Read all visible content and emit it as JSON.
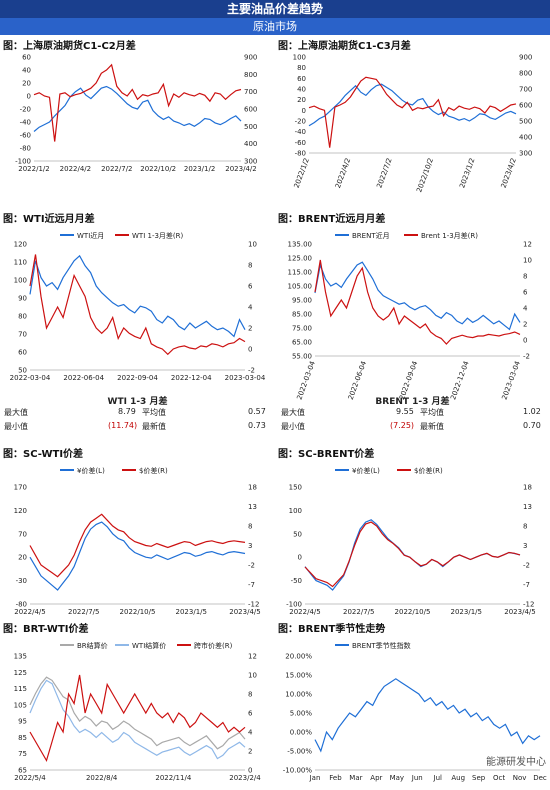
{
  "header": {
    "title": "主要油品价差趋势",
    "subtitle": "原油市场"
  },
  "stats_left": {
    "title": "WTI 1-3 月差",
    "max_label": "最大值",
    "max_val": "8.79",
    "avg_label": "平均值",
    "avg_val": "0.57",
    "min_label": "最小值",
    "min_val": "(11.74)",
    "latest_label": "最新值",
    "latest_val": "0.73"
  },
  "stats_right": {
    "title": "BRENT 1-3 月差",
    "max_label": "最大值",
    "max_val": "9.55",
    "avg_label": "平均值",
    "avg_val": "1.02",
    "min_label": "最小值",
    "min_val": "(7.25)",
    "latest_label": "最新值",
    "latest_val": "0.70"
  },
  "watermark": "能源研发中心",
  "colors": {
    "blue": "#1f6fd6",
    "red": "#cc1111",
    "gray": "#a9a9a9",
    "lightblue": "#8fb8e8",
    "banner": "#1a3f8e",
    "subbanner": "#2a62c9"
  },
  "chart_data": [
    {
      "id": "c1",
      "title": "图：上海原油期货C1-C2月差",
      "type": "line",
      "left_ticks": [
        "60",
        "40",
        "20",
        "0",
        "-20",
        "-40",
        "-60",
        "-80",
        "-100"
      ],
      "right_ticks": [
        "900",
        "800",
        "700",
        "600",
        "500",
        "400",
        "300"
      ],
      "x_ticks": [
        "2022/1/2",
        "2022/4/2",
        "2022/7/2",
        "2022/10/2",
        "2023/1/2",
        "2023/4/2"
      ],
      "ylim_left": [
        -100,
        60
      ],
      "ylim_right": [
        300,
        900
      ],
      "series": [
        {
          "color": "blue",
          "axis": "right",
          "values": [
            470,
            495,
            510,
            525,
            560,
            590,
            620,
            670,
            700,
            720,
            680,
            660,
            690,
            720,
            730,
            715,
            690,
            660,
            630,
            610,
            600,
            640,
            650,
            590,
            560,
            540,
            555,
            530,
            520,
            505,
            515,
            500,
            520,
            545,
            540,
            520,
            510,
            525,
            545,
            560,
            530
          ]
        },
        {
          "color": "red",
          "axis": "left",
          "values": [
            2,
            5,
            0,
            -2,
            -70,
            3,
            5,
            -1,
            2,
            4,
            8,
            12,
            20,
            35,
            40,
            48,
            15,
            5,
            0,
            10,
            -5,
            2,
            0,
            3,
            5,
            18,
            -15,
            3,
            -2,
            5,
            2,
            0,
            4,
            1,
            -8,
            5,
            3,
            -5,
            2,
            8,
            10
          ]
        }
      ]
    },
    {
      "id": "c2",
      "title": "图：上海原油期货C1-C3月差",
      "type": "line",
      "left_ticks": [
        "100",
        "80",
        "60",
        "40",
        "20",
        "0",
        "-20",
        "-40",
        "-60",
        "-80"
      ],
      "right_ticks": [
        "900",
        "800",
        "700",
        "600",
        "500",
        "400",
        "300"
      ],
      "x_ticks": [
        "2022/1/2",
        "2022/4/2",
        "2022/7/2",
        "2022/10/2",
        "2023/1/2",
        "2023/4/2"
      ],
      "ylim_left": [
        -80,
        100
      ],
      "ylim_right": [
        300,
        900
      ],
      "series": [
        {
          "color": "blue",
          "axis": "right",
          "values": [
            470,
            490,
            515,
            530,
            560,
            590,
            620,
            660,
            690,
            720,
            680,
            660,
            695,
            720,
            730,
            710,
            690,
            660,
            630,
            610,
            600,
            630,
            640,
            590,
            560,
            540,
            555,
            530,
            520,
            505,
            515,
            500,
            520,
            545,
            540,
            520,
            510,
            530,
            550,
            560,
            545
          ]
        },
        {
          "color": "red",
          "axis": "left",
          "values": [
            5,
            8,
            3,
            0,
            -70,
            6,
            10,
            15,
            25,
            40,
            55,
            62,
            60,
            58,
            45,
            30,
            20,
            10,
            5,
            15,
            0,
            5,
            3,
            6,
            8,
            20,
            -10,
            5,
            0,
            8,
            4,
            2,
            6,
            3,
            -5,
            8,
            5,
            -2,
            4,
            10,
            12
          ]
        }
      ]
    },
    {
      "id": "c3",
      "title": "图：WTI近远月月差",
      "type": "line",
      "left_ticks": [
        "120",
        "110",
        "100",
        "90",
        "80",
        "70",
        "60",
        "50"
      ],
      "right_ticks": [
        "10",
        "8",
        "6",
        "4",
        "2",
        "0",
        "-2"
      ],
      "x_ticks": [
        "2022-03-04",
        "2022-06-04",
        "2022-09-04",
        "2022-12-04",
        "2023-03-04"
      ],
      "ylim_left": [
        50,
        125
      ],
      "ylim_right": [
        -2,
        10
      ],
      "legend": [
        "WTI近月",
        "WTI 1-3月差(R)"
      ],
      "series": [
        {
          "name": "WTI近月",
          "color": "blue",
          "axis": "left",
          "values": [
            95,
            115,
            105,
            100,
            102,
            98,
            105,
            110,
            115,
            118,
            112,
            108,
            100,
            96,
            93,
            90,
            88,
            89,
            86,
            84,
            88,
            87,
            85,
            80,
            78,
            82,
            80,
            76,
            74,
            78,
            75,
            77,
            79,
            76,
            74,
            75,
            73,
            70,
            80,
            74
          ]
        },
        {
          "name": "WTI 1-3月差(R)",
          "color": "red",
          "axis": "right",
          "values": [
            6,
            9,
            5,
            2,
            3,
            4,
            3,
            5,
            7,
            6,
            5,
            3,
            2,
            1.5,
            2,
            3,
            1,
            2,
            1.5,
            1.2,
            1,
            2,
            0.5,
            0.2,
            0,
            -0.5,
            0,
            0.2,
            0.3,
            0.1,
            0,
            0.3,
            0.2,
            0.5,
            0.4,
            0.2,
            0.5,
            0.6,
            1,
            0.7
          ]
        }
      ]
    },
    {
      "id": "c4",
      "title": "图：BRENT近远月月差",
      "type": "line",
      "left_ticks": [
        "135.00",
        "125.00",
        "115.00",
        "105.00",
        "95.00",
        "85.00",
        "75.00",
        "65.00",
        "55.00"
      ],
      "right_ticks": [
        "12",
        "10",
        "8",
        "6",
        "4",
        "2",
        "0",
        "-2"
      ],
      "x_ticks": [
        "2022-03-04",
        "2022-06-04",
        "2022-09-04",
        "2022-12-04",
        "2023-03-04"
      ],
      "ylim_left": [
        55,
        135
      ],
      "ylim_right": [
        -2,
        12
      ],
      "legend": [
        "BRENT近月",
        "Brent 1-3月差(R)"
      ],
      "series": [
        {
          "name": "BRENT近月",
          "color": "blue",
          "axis": "left",
          "values": [
            100,
            120,
            110,
            105,
            107,
            104,
            110,
            115,
            120,
            122,
            116,
            110,
            102,
            98,
            96,
            94,
            92,
            93,
            90,
            88,
            90,
            91,
            88,
            84,
            82,
            86,
            84,
            80,
            78,
            82,
            79,
            81,
            84,
            81,
            78,
            80,
            77,
            74,
            85,
            79
          ]
        },
        {
          "name": "Brent 1-3月差(R)",
          "color": "red",
          "axis": "right",
          "values": [
            6,
            10,
            6,
            3,
            4,
            5,
            4,
            6,
            8,
            9,
            6,
            4,
            3,
            2.5,
            3,
            4,
            2,
            3,
            2.5,
            2,
            1.5,
            2,
            1,
            0.5,
            0.2,
            -0.5,
            0.2,
            0.4,
            0.6,
            0.4,
            0.3,
            0.5,
            0.5,
            0.7,
            0.6,
            0.5,
            0.7,
            0.8,
            1,
            0.7
          ]
        }
      ]
    },
    {
      "id": "c5",
      "title": "图：SC-WTI价差",
      "type": "line",
      "left_ticks": [
        "170",
        "120",
        "70",
        "20",
        "-30",
        "-80"
      ],
      "right_ticks": [
        "18",
        "13",
        "8",
        "3",
        "-2",
        "-7",
        "-12"
      ],
      "x_ticks": [
        "2022/4/5",
        "2022/7/5",
        "2022/10/5",
        "2023/1/5",
        "2023/4/5"
      ],
      "ylim_left": [
        -80,
        170
      ],
      "ylim_right": [
        -12,
        18
      ],
      "legend": [
        "¥价差(L)",
        "$价差(R)"
      ],
      "series": [
        {
          "name": "¥价差(L)",
          "color": "blue",
          "axis": "left",
          "values": [
            20,
            0,
            -20,
            -30,
            -40,
            -50,
            -35,
            -20,
            0,
            30,
            60,
            80,
            90,
            95,
            85,
            70,
            60,
            55,
            40,
            30,
            25,
            20,
            18,
            25,
            20,
            15,
            20,
            25,
            30,
            28,
            22,
            25,
            30,
            32,
            28,
            25,
            30,
            32,
            30,
            28
          ]
        },
        {
          "name": "$价差(R)",
          "color": "red",
          "axis": "right",
          "values": [
            3,
            0.5,
            -2,
            -3,
            -4,
            -5,
            -3.5,
            -2,
            0.5,
            4,
            7,
            9,
            10,
            11,
            9.5,
            8,
            7,
            6.5,
            5,
            4,
            3.5,
            3,
            2.8,
            3.5,
            3,
            2.5,
            3,
            3.5,
            4,
            3.8,
            3,
            3.5,
            4,
            4.2,
            3.8,
            3.5,
            4,
            4.2,
            4,
            3.8
          ]
        }
      ]
    },
    {
      "id": "c6",
      "title": "图：SC-BRENT价差",
      "type": "line",
      "left_ticks": [
        "150",
        "100",
        "50",
        "0",
        "-50",
        "-100"
      ],
      "right_ticks": [
        "18",
        "13",
        "8",
        "3",
        "-2",
        "-7",
        "-12"
      ],
      "x_ticks": [
        "2022/4/5",
        "2022/7/5",
        "2022/10/5",
        "2023/1/5",
        "2023/4/5"
      ],
      "ylim_left": [
        -100,
        150
      ],
      "ylim_right": [
        -12,
        18
      ],
      "legend": [
        "¥价差(L)",
        "$价差(R)"
      ],
      "series": [
        {
          "name": "¥价差(L)",
          "color": "blue",
          "axis": "left",
          "values": [
            -20,
            -35,
            -50,
            -55,
            -60,
            -70,
            -55,
            -40,
            -10,
            30,
            60,
            75,
            80,
            70,
            55,
            40,
            30,
            20,
            5,
            0,
            -10,
            -20,
            -15,
            -5,
            -10,
            -20,
            -10,
            0,
            5,
            0,
            -5,
            0,
            5,
            8,
            2,
            0,
            5,
            10,
            8,
            5
          ]
        },
        {
          "name": "$价差(R)",
          "color": "red",
          "axis": "right",
          "values": [
            -2.5,
            -4,
            -5.5,
            -6,
            -6.5,
            -7.5,
            -6,
            -4.5,
            -1,
            3,
            6.5,
            8.5,
            9,
            8,
            6,
            4.5,
            3.5,
            2.2,
            0.5,
            0,
            -1.2,
            -2.2,
            -1.8,
            -0.6,
            -1.2,
            -2.2,
            -1.2,
            0,
            0.6,
            0,
            -0.6,
            0,
            0.6,
            1,
            0.2,
            0,
            0.6,
            1.2,
            1,
            0.6
          ]
        }
      ]
    },
    {
      "id": "c7",
      "title": "图：BRT-WTI价差",
      "type": "line",
      "left_ticks": [
        "135",
        "125",
        "115",
        "105",
        "95",
        "85",
        "75",
        "65"
      ],
      "right_ticks": [
        "12",
        "10",
        "8",
        "6",
        "4",
        "2",
        "0"
      ],
      "x_ticks": [
        "2022/5/4",
        "2022/8/4",
        "2022/11/4",
        "2023/2/4"
      ],
      "ylim_left": [
        65,
        135
      ],
      "ylim_right": [
        0,
        12
      ],
      "legend": [
        "BR结算价",
        "WTI结算价",
        "跨市价差(R)"
      ],
      "series": [
        {
          "name": "BR结算价",
          "color": "gray",
          "axis": "left",
          "values": [
            105,
            112,
            118,
            122,
            120,
            115,
            110,
            108,
            100,
            95,
            98,
            96,
            92,
            95,
            94,
            90,
            92,
            95,
            93,
            90,
            88,
            86,
            84,
            80,
            82,
            83,
            84,
            85,
            82,
            80,
            82,
            84,
            86,
            82,
            78,
            80,
            84,
            86,
            88,
            84
          ]
        },
        {
          "name": "WTI结算价",
          "color": "lightblue",
          "axis": "left",
          "values": [
            100,
            108,
            115,
            120,
            118,
            110,
            102,
            98,
            92,
            88,
            90,
            88,
            85,
            88,
            85,
            82,
            84,
            88,
            86,
            82,
            80,
            78,
            76,
            74,
            76,
            77,
            78,
            79,
            76,
            74,
            76,
            78,
            80,
            78,
            72,
            74,
            78,
            80,
            82,
            79
          ]
        },
        {
          "name": "跨市价差(R)",
          "color": "red",
          "axis": "right",
          "values": [
            4,
            3,
            2,
            1,
            3,
            5,
            4,
            8,
            7,
            10,
            6,
            8,
            7,
            6,
            9,
            8,
            7,
            6,
            7,
            8,
            7,
            6,
            7,
            6,
            5.5,
            6,
            5,
            6,
            5.5,
            4.5,
            5,
            6,
            5.5,
            5,
            4.5,
            5,
            4,
            4.5,
            4,
            4.5
          ]
        }
      ]
    },
    {
      "id": "c8",
      "title": "图：BRENT季节性走势",
      "type": "line",
      "left_ticks": [
        "20.00%",
        "15.00%",
        "10.00%",
        "5.00%",
        "0.00%",
        "-5.00%",
        "-10.00%"
      ],
      "x_ticks": [
        "Jan",
        "Feb",
        "Mar",
        "Apr",
        "May",
        "Jun",
        "Jul",
        "Aug",
        "Sep",
        "Oct",
        "Nov",
        "Dec"
      ],
      "ylim_left": [
        -10,
        20
      ],
      "legend": [
        "BRENT季节性指数"
      ],
      "series": [
        {
          "name": "BRENT季节性指数",
          "color": "blue",
          "axis": "left",
          "values": [
            -2,
            -5,
            0,
            -2,
            1,
            3,
            5,
            4,
            6,
            8,
            7,
            10,
            12,
            13,
            14,
            13,
            12,
            11,
            10,
            8,
            9,
            7,
            8,
            6,
            7,
            5,
            6,
            4,
            5,
            3,
            4,
            2,
            1,
            2,
            -1,
            0,
            -3,
            -1,
            -2,
            -1
          ]
        }
      ]
    }
  ]
}
